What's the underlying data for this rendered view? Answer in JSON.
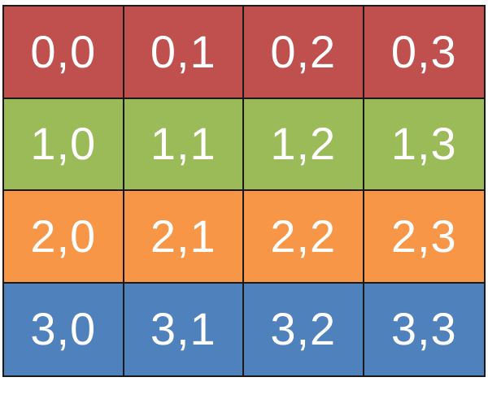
{
  "grid": {
    "rows": [
      {
        "color": "#c0504d",
        "cells": [
          "0,0",
          "0,1",
          "0,2",
          "0,3"
        ]
      },
      {
        "color": "#9bbb59",
        "cells": [
          "1,0",
          "1,1",
          "1,2",
          "1,3"
        ]
      },
      {
        "color": "#f79646",
        "cells": [
          "2,0",
          "2,1",
          "2,2",
          "2,3"
        ]
      },
      {
        "color": "#4f81bd",
        "cells": [
          "3,0",
          "3,1",
          "3,2",
          "3,3"
        ]
      }
    ],
    "text_color": "#ffffff",
    "border_color": "#1a1a1a"
  }
}
